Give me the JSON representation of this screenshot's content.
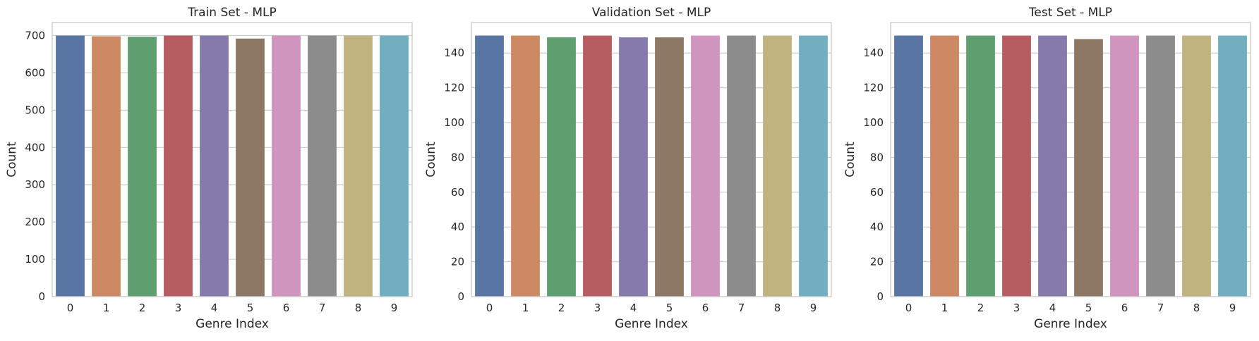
{
  "palette": [
    "#5875a4",
    "#cc8963",
    "#5f9e6e",
    "#b55d60",
    "#857aab",
    "#8d7866",
    "#d095bf",
    "#8c8c8c",
    "#c1b37f",
    "#71aec0"
  ],
  "grid_color": "#cccccc",
  "frame_color": "#cccccc",
  "chart_data": [
    {
      "type": "bar",
      "title": "Train Set - MLP",
      "xlabel": "Genre Index",
      "ylabel": "Count",
      "categories": [
        "0",
        "1",
        "2",
        "3",
        "4",
        "5",
        "6",
        "7",
        "8",
        "9"
      ],
      "values": [
        700,
        698,
        697,
        700,
        700,
        692,
        700,
        700,
        700,
        700
      ],
      "ylim": [
        0,
        735
      ],
      "yticks": [
        0,
        100,
        200,
        300,
        400,
        500,
        600,
        700
      ],
      "grid": true,
      "grid_axis": "y"
    },
    {
      "type": "bar",
      "title": "Validation Set - MLP",
      "xlabel": "Genre Index",
      "ylabel": "Count",
      "categories": [
        "0",
        "1",
        "2",
        "3",
        "4",
        "5",
        "6",
        "7",
        "8",
        "9"
      ],
      "values": [
        150,
        150,
        149,
        150,
        149,
        149,
        150,
        150,
        150,
        150
      ],
      "ylim": [
        0,
        157.5
      ],
      "yticks": [
        0,
        20,
        40,
        60,
        80,
        100,
        120,
        140
      ],
      "grid": true,
      "grid_axis": "y"
    },
    {
      "type": "bar",
      "title": "Test Set - MLP",
      "xlabel": "Genre Index",
      "ylabel": "Count",
      "categories": [
        "0",
        "1",
        "2",
        "3",
        "4",
        "5",
        "6",
        "7",
        "8",
        "9"
      ],
      "values": [
        150,
        150,
        150,
        150,
        150,
        148,
        150,
        150,
        150,
        150
      ],
      "ylim": [
        0,
        157.5
      ],
      "yticks": [
        0,
        20,
        40,
        60,
        80,
        100,
        120,
        140
      ],
      "grid": true,
      "grid_axis": "y"
    }
  ]
}
